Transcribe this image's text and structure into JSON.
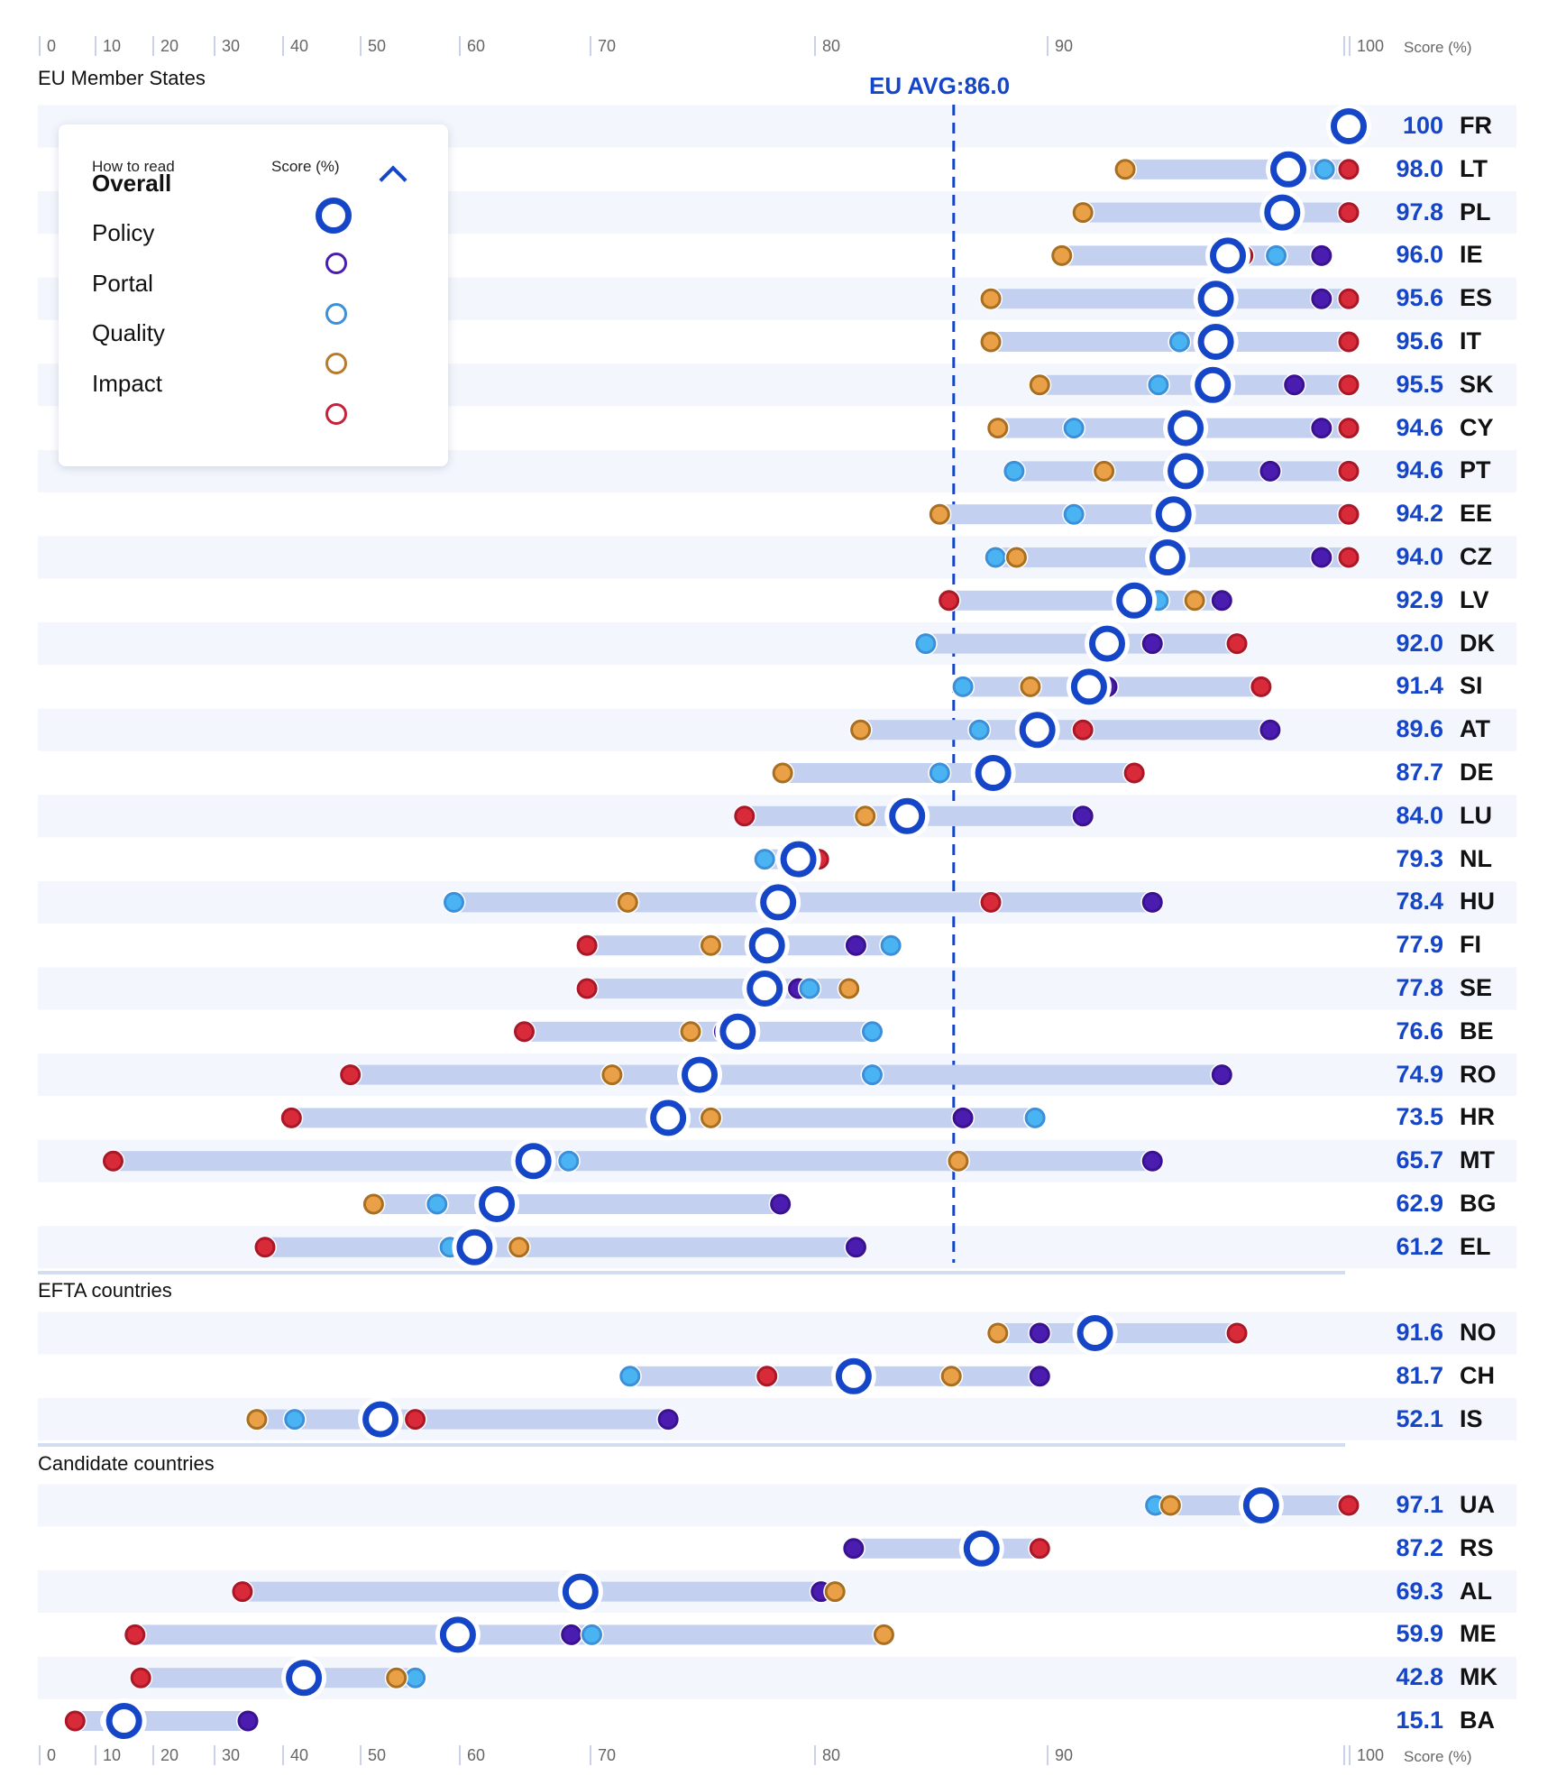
{
  "colors": {
    "overall": "#1646c8",
    "policy": "#4a1db0",
    "portal": "#4ab4f2",
    "quality": "#e9a046",
    "impact": "#d82a38",
    "bar": "#c3d0f0",
    "stripe": "#f3f6fc"
  },
  "axis": {
    "ticks": [
      0,
      10,
      20,
      30,
      40,
      50,
      60,
      70,
      80,
      90,
      100
    ],
    "title": "Score (%)"
  },
  "eu_average": {
    "label": "EU AVG:86.0",
    "value": 86.0
  },
  "legend": {
    "title": "How to read",
    "score_label": "Score (%)",
    "items": [
      {
        "key": "overall",
        "label": "Overall"
      },
      {
        "key": "policy",
        "label": "Policy"
      },
      {
        "key": "portal",
        "label": "Portal"
      },
      {
        "key": "quality",
        "label": "Quality"
      },
      {
        "key": "impact",
        "label": "Impact"
      }
    ],
    "collapse_icon": "chevron-up-icon"
  },
  "chart_data": {
    "type": "dot-range",
    "xlabel": "Score (%)",
    "xlim": [
      0,
      100
    ],
    "groups": [
      {
        "label": "EU Member States",
        "rows": [
          {
            "code": "FR",
            "overall": 100,
            "overall_label": "100",
            "policy": 100,
            "portal": 100,
            "quality": 100,
            "impact": 100
          },
          {
            "code": "LT",
            "overall": 98.0,
            "overall_label": "98.0",
            "policy": 100,
            "portal": 99.2,
            "quality": 92.6,
            "impact": 100
          },
          {
            "code": "PL",
            "overall": 97.8,
            "overall_label": "97.8",
            "policy": 100,
            "portal": 100,
            "quality": 91.2,
            "impact": 100
          },
          {
            "code": "IE",
            "overall": 96.0,
            "overall_label": "96.0",
            "policy": 99.1,
            "portal": 97.6,
            "quality": 90.5,
            "impact": 96.5
          },
          {
            "code": "ES",
            "overall": 95.6,
            "overall_label": "95.6",
            "policy": 99.1,
            "portal": 95.5,
            "quality": 87.6,
            "impact": 100
          },
          {
            "code": "IT",
            "overall": 95.6,
            "overall_label": "95.6",
            "policy": 100,
            "portal": 94.4,
            "quality": 87.6,
            "impact": 100
          },
          {
            "code": "SK",
            "overall": 95.5,
            "overall_label": "95.5",
            "policy": 98.2,
            "portal": 93.7,
            "quality": 89.7,
            "impact": 100
          },
          {
            "code": "CY",
            "overall": 94.6,
            "overall_label": "94.6",
            "policy": 99.1,
            "portal": 90.9,
            "quality": 87.9,
            "impact": 100
          },
          {
            "code": "PT",
            "overall": 94.6,
            "overall_label": "94.6",
            "policy": 97.4,
            "portal": 88.6,
            "quality": 91.9,
            "impact": 100
          },
          {
            "code": "EE",
            "overall": 94.2,
            "overall_label": "94.2",
            "policy": 100,
            "portal": 90.9,
            "quality": 85.4,
            "impact": 100
          },
          {
            "code": "CZ",
            "overall": 94.0,
            "overall_label": "94.0",
            "policy": 99.1,
            "portal": 87.8,
            "quality": 88.7,
            "impact": 100
          },
          {
            "code": "LV",
            "overall": 92.9,
            "overall_label": "92.9",
            "policy": 95.8,
            "portal": 93.7,
            "quality": 94.9,
            "impact": 85.8
          },
          {
            "code": "DK",
            "overall": 92.0,
            "overall_label": "92.0",
            "policy": 93.5,
            "portal": 84.8,
            "quality": 92.0,
            "impact": 96.3
          },
          {
            "code": "SI",
            "overall": 91.4,
            "overall_label": "91.4",
            "policy": 92.0,
            "portal": 86.4,
            "quality": 89.3,
            "impact": 97.1
          },
          {
            "code": "AT",
            "overall": 89.6,
            "overall_label": "89.6",
            "policy": 97.4,
            "portal": 87.1,
            "quality": 82.0,
            "impact": 91.2
          },
          {
            "code": "DE",
            "overall": 87.7,
            "overall_label": "87.7",
            "policy": 88.0,
            "portal": 85.4,
            "quality": 78.6,
            "impact": 92.9
          },
          {
            "code": "LU",
            "overall": 84.0,
            "overall_label": "84.0",
            "policy": 91.2,
            "portal": 84.0,
            "quality": 82.2,
            "impact": 76.9
          },
          {
            "code": "NL",
            "overall": 79.3,
            "overall_label": "79.3",
            "policy": 79.3,
            "portal": 77.8,
            "quality": 79.3,
            "impact": 80.2
          },
          {
            "code": "HU",
            "overall": 78.4,
            "overall_label": "78.4",
            "policy": 93.5,
            "portal": 59.5,
            "quality": 71.7,
            "impact": 87.6
          },
          {
            "code": "FI",
            "overall": 77.9,
            "overall_label": "77.9",
            "policy": 81.8,
            "portal": 83.3,
            "quality": 75.4,
            "impact": 69.8
          },
          {
            "code": "SE",
            "overall": 77.8,
            "overall_label": "77.8",
            "policy": 79.3,
            "portal": 79.8,
            "quality": 81.5,
            "impact": 69.8
          },
          {
            "code": "BE",
            "overall": 76.6,
            "overall_label": "76.6",
            "policy": 76.0,
            "portal": 82.5,
            "quality": 74.5,
            "impact": 65.0
          },
          {
            "code": "RO",
            "overall": 74.9,
            "overall_label": "74.9",
            "policy": 95.8,
            "portal": 82.5,
            "quality": 71.0,
            "impact": 48.8
          },
          {
            "code": "HR",
            "overall": 73.5,
            "overall_label": "73.5",
            "policy": 86.4,
            "portal": 89.5,
            "quality": 75.4,
            "impact": 41.2
          },
          {
            "code": "MT",
            "overall": 65.7,
            "overall_label": "65.7",
            "policy": 93.5,
            "portal": 68.4,
            "quality": 86.2,
            "impact": 13.2
          },
          {
            "code": "BG",
            "overall": 62.9,
            "overall_label": "62.9",
            "policy": 78.5,
            "portal": 57.8,
            "quality": 51.4,
            "impact": 63.0
          },
          {
            "code": "EL",
            "overall": 61.2,
            "overall_label": "61.2",
            "policy": 81.8,
            "portal": 59.1,
            "quality": 64.6,
            "impact": 37.5
          }
        ]
      },
      {
        "label": "EFTA countries",
        "rows": [
          {
            "code": "NO",
            "overall": 91.6,
            "overall_label": "91.6",
            "policy": 89.7,
            "portal": 91.6,
            "quality": 87.9,
            "impact": 96.3
          },
          {
            "code": "CH",
            "overall": 81.7,
            "overall_label": "81.7",
            "policy": 89.7,
            "portal": 71.8,
            "quality": 85.9,
            "impact": 77.9
          },
          {
            "code": "IS",
            "overall": 52.1,
            "overall_label": "52.1",
            "policy": 73.5,
            "portal": 41.6,
            "quality": 36.3,
            "impact": 55.6
          }
        ]
      },
      {
        "label": "Candidate countries",
        "rows": [
          {
            "code": "UA",
            "overall": 97.1,
            "overall_label": "97.1",
            "policy": 100,
            "portal": 93.6,
            "quality": 94.1,
            "impact": 100
          },
          {
            "code": "RS",
            "overall": 87.2,
            "overall_label": "87.2",
            "policy": 81.7,
            "portal": 87.2,
            "quality": 87.2,
            "impact": 89.7
          },
          {
            "code": "AL",
            "overall": 69.3,
            "overall_label": "69.3",
            "policy": 80.3,
            "portal": 69.3,
            "quality": 80.9,
            "impact": 34.2
          },
          {
            "code": "ME",
            "overall": 59.9,
            "overall_label": "59.9",
            "policy": 68.6,
            "portal": 70.1,
            "quality": 83.0,
            "impact": 17.0
          },
          {
            "code": "MK",
            "overall": 42.8,
            "overall_label": "42.8",
            "policy": 42.8,
            "portal": 55.6,
            "quality": 53.7,
            "impact": 18.0
          },
          {
            "code": "BA",
            "overall": 15.1,
            "overall_label": "15.1",
            "policy": 35.0,
            "portal": 13.0,
            "quality": 13.0,
            "impact": 6.5
          }
        ]
      }
    ]
  }
}
